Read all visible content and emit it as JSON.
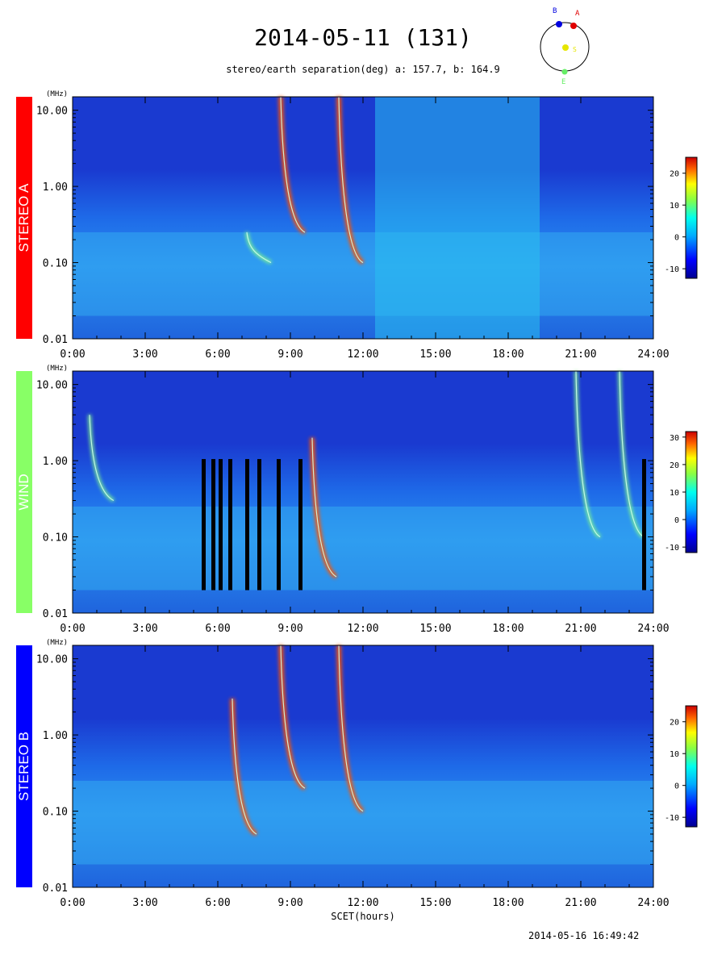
{
  "title": "2014-05-11 (131)",
  "subtitle": "stereo/earth separation(deg) a: 157.7, b: 164.9",
  "orbit_diagram": {
    "labels": {
      "a": "A",
      "b": "B",
      "s": "S",
      "e": "E"
    },
    "colors": {
      "a": "#e00000",
      "b": "#0000e0",
      "s": "#e6e600",
      "e": "#66ee66"
    }
  },
  "x_axis_label": "SCET(hours)",
  "generated": "2014-05-16 16:49:42",
  "chart_data": [
    {
      "type": "heatmap",
      "name": "STEREO A",
      "label_color": "#ff0000",
      "y_unit": "(MHz)",
      "y_scale": "log",
      "ylim": [
        0.01,
        15
      ],
      "y_ticks": [
        "10.00",
        "1.00",
        "0.10",
        "0.01"
      ],
      "x_ticks": [
        "0:00",
        "3:00",
        "6:00",
        "9:00",
        "12:00",
        "15:00",
        "18:00",
        "21:00",
        "24:00"
      ],
      "xlim": [
        0,
        24
      ],
      "colorbar": {
        "ticks": [
          "20",
          "10",
          "0",
          "-10"
        ],
        "range": [
          -13,
          25
        ]
      },
      "features": [
        {
          "kind": "type-III burst",
          "start_hour": 8.6,
          "f_high_mhz": 15,
          "f_low_mhz": 0.25,
          "intensity": "high"
        },
        {
          "kind": "type-III burst",
          "start_hour": 7.2,
          "f_high_mhz": 0.25,
          "f_low_mhz": 0.1,
          "intensity": "medium"
        },
        {
          "kind": "type-III burst",
          "start_hour": 11.0,
          "f_high_mhz": 15,
          "f_low_mhz": 0.1,
          "intensity": "high"
        },
        {
          "kind": "data gap / noise band",
          "start_hour": 12.5,
          "end_hour": 19.3
        }
      ]
    },
    {
      "type": "heatmap",
      "name": "WIND",
      "label_color": "#88ff66",
      "y_unit": "(MHz)",
      "y_scale": "log",
      "ylim": [
        0.01,
        15
      ],
      "y_ticks": [
        "10.00",
        "1.00",
        "0.10",
        "0.01"
      ],
      "x_ticks": [
        "0:00",
        "3:00",
        "6:00",
        "9:00",
        "12:00",
        "15:00",
        "18:00",
        "21:00",
        "24:00"
      ],
      "xlim": [
        0,
        24
      ],
      "colorbar": {
        "ticks": [
          "30",
          "20",
          "10",
          "0",
          "-10"
        ],
        "range": [
          -12,
          32
        ]
      },
      "data_gaps_hours": [
        5.4,
        5.8,
        6.1,
        6.5,
        7.2,
        7.7,
        8.5,
        9.4,
        23.6
      ],
      "features": [
        {
          "kind": "type-III burst",
          "start_hour": 0.7,
          "f_high_mhz": 4,
          "f_low_mhz": 0.3,
          "intensity": "medium"
        },
        {
          "kind": "type-III burst",
          "start_hour": 9.9,
          "f_high_mhz": 2,
          "f_low_mhz": 0.03,
          "intensity": "high"
        },
        {
          "kind": "type-III burst",
          "start_hour": 20.8,
          "f_high_mhz": 15,
          "f_low_mhz": 0.1,
          "intensity": "medium"
        },
        {
          "kind": "type-III burst",
          "start_hour": 22.6,
          "f_high_mhz": 15,
          "f_low_mhz": 0.1,
          "intensity": "medium"
        }
      ]
    },
    {
      "type": "heatmap",
      "name": "STEREO B",
      "label_color": "#0000ff",
      "y_unit": "(MHz)",
      "y_scale": "log",
      "ylim": [
        0.01,
        15
      ],
      "y_ticks": [
        "10.00",
        "1.00",
        "0.10",
        "0.01"
      ],
      "x_ticks": [
        "0:00",
        "3:00",
        "6:00",
        "9:00",
        "12:00",
        "15:00",
        "18:00",
        "21:00",
        "24:00"
      ],
      "xlim": [
        0,
        24
      ],
      "colorbar": {
        "ticks": [
          "20",
          "10",
          "0",
          "-10"
        ],
        "range": [
          -13,
          25
        ]
      },
      "features": [
        {
          "kind": "type-III burst",
          "start_hour": 6.6,
          "f_high_mhz": 3,
          "f_low_mhz": 0.05,
          "intensity": "high"
        },
        {
          "kind": "type-III burst",
          "start_hour": 8.6,
          "f_high_mhz": 15,
          "f_low_mhz": 0.2,
          "intensity": "high"
        },
        {
          "kind": "type-III burst",
          "start_hour": 11.0,
          "f_high_mhz": 15,
          "f_low_mhz": 0.1,
          "intensity": "high"
        }
      ]
    }
  ]
}
